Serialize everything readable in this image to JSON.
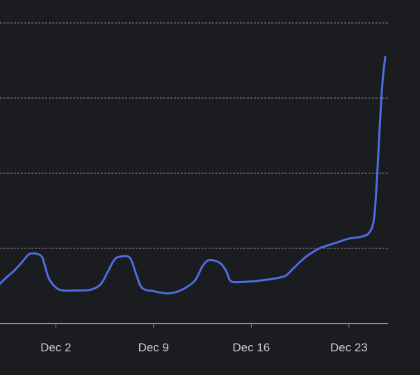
{
  "chart_data": {
    "type": "line",
    "title": "",
    "xlabel": "",
    "ylabel": "",
    "x_tick_labels": [
      "Dec 2",
      "Dec 9",
      "Dec 16",
      "Dec 23"
    ],
    "x_tick_days": [
      2,
      9,
      16,
      23
    ],
    "x_range_days": [
      -2,
      25.8
    ],
    "y_range": [
      0,
      4
    ],
    "grid": true,
    "legend": "none",
    "series": [
      {
        "color": "#4f6ce0",
        "points": [
          [
            -2.0,
            0.53
          ],
          [
            -1.5,
            0.62
          ],
          [
            -1.0,
            0.7
          ],
          [
            -0.5,
            0.8
          ],
          [
            0.0,
            0.91
          ],
          [
            0.2,
            0.93
          ],
          [
            0.6,
            0.93
          ],
          [
            1.0,
            0.89
          ],
          [
            1.2,
            0.78
          ],
          [
            1.5,
            0.6
          ],
          [
            2.0,
            0.48
          ],
          [
            2.5,
            0.44
          ],
          [
            3.5,
            0.44
          ],
          [
            4.5,
            0.45
          ],
          [
            5.2,
            0.52
          ],
          [
            5.7,
            0.68
          ],
          [
            6.2,
            0.85
          ],
          [
            6.6,
            0.89
          ],
          [
            7.2,
            0.89
          ],
          [
            7.5,
            0.8
          ],
          [
            7.8,
            0.63
          ],
          [
            8.2,
            0.47
          ],
          [
            9.0,
            0.43
          ],
          [
            10.0,
            0.4
          ],
          [
            10.8,
            0.43
          ],
          [
            11.5,
            0.5
          ],
          [
            12.0,
            0.58
          ],
          [
            12.5,
            0.76
          ],
          [
            12.9,
            0.84
          ],
          [
            13.3,
            0.84
          ],
          [
            13.8,
            0.8
          ],
          [
            14.2,
            0.7
          ],
          [
            14.5,
            0.57
          ],
          [
            15.0,
            0.55
          ],
          [
            16.0,
            0.56
          ],
          [
            17.0,
            0.58
          ],
          [
            18.0,
            0.61
          ],
          [
            18.5,
            0.64
          ],
          [
            19.0,
            0.73
          ],
          [
            19.5,
            0.82
          ],
          [
            20.0,
            0.9
          ],
          [
            20.5,
            0.96
          ],
          [
            21.0,
            1.01
          ],
          [
            22.0,
            1.07
          ],
          [
            23.0,
            1.13
          ],
          [
            24.0,
            1.16
          ],
          [
            24.5,
            1.22
          ],
          [
            24.8,
            1.4
          ],
          [
            25.0,
            1.9
          ],
          [
            25.2,
            2.6
          ],
          [
            25.4,
            3.2
          ],
          [
            25.6,
            3.55
          ]
        ]
      }
    ]
  },
  "colors": {
    "background": "#1b1c1f",
    "gridline": "#8a8c91",
    "axis": "#8a8c91",
    "line": "#4f6ce0",
    "tick_label": "#c9cbd1"
  }
}
